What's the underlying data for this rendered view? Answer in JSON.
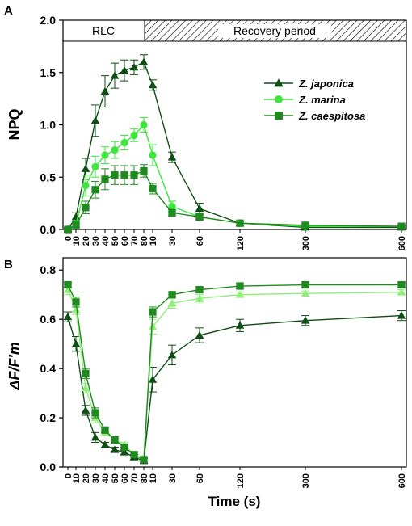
{
  "chart_data": [
    {
      "panel": "A",
      "type": "line",
      "ylabel": "NPQ",
      "ylim": [
        0,
        2.0
      ],
      "yticks": [
        "0.0",
        "0.5",
        "1.0",
        "1.5",
        "2.0"
      ],
      "x": [
        "0",
        "10",
        "20",
        "30",
        "40",
        "50",
        "60",
        "70",
        "80",
        "10",
        "30",
        "60",
        "120",
        "300",
        "600"
      ],
      "phases": {
        "rlc_label": "RLC",
        "recovery_label": "Recovery period"
      },
      "legend": "right-middle",
      "series": [
        {
          "name": "Z. japonica",
          "marker": "triangle",
          "color": "#0e4d14",
          "values": [
            0.0,
            0.12,
            0.58,
            1.04,
            1.32,
            1.47,
            1.52,
            1.55,
            1.6,
            1.38,
            0.69,
            0.2,
            0.06,
            0.02,
            0.02
          ],
          "errors": [
            0.02,
            0.04,
            0.1,
            0.15,
            0.15,
            0.12,
            0.1,
            0.07,
            0.07,
            0.05,
            0.05,
            0.05,
            0.02,
            0.01,
            0.01
          ]
        },
        {
          "name": "Z. marina",
          "marker": "circle",
          "color": "#3ce63c",
          "values": [
            0.0,
            0.05,
            0.42,
            0.6,
            0.71,
            0.76,
            0.83,
            0.9,
            1.0,
            0.71,
            0.22,
            0.12,
            0.06,
            0.03,
            0.03
          ],
          "errors": [
            0.01,
            0.03,
            0.1,
            0.1,
            0.08,
            0.08,
            0.07,
            0.06,
            0.07,
            0.1,
            0.05,
            0.03,
            0.02,
            0.01,
            0.01
          ]
        },
        {
          "name": "Z. caespitosa",
          "marker": "square",
          "color": "#1f8a1f",
          "values": [
            0.0,
            0.04,
            0.21,
            0.38,
            0.48,
            0.52,
            0.52,
            0.52,
            0.56,
            0.39,
            0.16,
            0.12,
            0.06,
            0.04,
            0.03
          ],
          "errors": [
            0.01,
            0.02,
            0.06,
            0.08,
            0.1,
            0.09,
            0.09,
            0.09,
            0.06,
            0.05,
            0.03,
            0.02,
            0.02,
            0.01,
            0.01
          ]
        }
      ]
    },
    {
      "panel": "B",
      "type": "line",
      "ylabel": "ΔF/F′m",
      "xlabel": "Time (s)",
      "ylim": [
        0,
        0.85
      ],
      "yticks": [
        "0.0",
        "0.2",
        "0.4",
        "0.6",
        "0.8"
      ],
      "x": [
        "0",
        "10",
        "20",
        "30",
        "40",
        "50",
        "60",
        "70",
        "80",
        "10",
        "30",
        "60",
        "120",
        "300",
        "600"
      ],
      "series": [
        {
          "name": "Z. japonica",
          "marker": "triangle",
          "color": "#0e4d14",
          "values": [
            0.61,
            0.5,
            0.23,
            0.12,
            0.09,
            0.07,
            0.06,
            0.04,
            0.025,
            0.355,
            0.455,
            0.535,
            0.575,
            0.595,
            0.615
          ],
          "errors": [
            0.02,
            0.03,
            0.02,
            0.02,
            0.01,
            0.01,
            0.01,
            0.01,
            0.01,
            0.05,
            0.04,
            0.03,
            0.025,
            0.02,
            0.02
          ]
        },
        {
          "name": "Z. marina",
          "marker": "triangle",
          "color": "#90ee7a",
          "values": [
            0.72,
            0.64,
            0.32,
            0.2,
            0.14,
            0.11,
            0.09,
            0.05,
            0.03,
            0.57,
            0.665,
            0.685,
            0.7,
            0.705,
            0.71
          ],
          "errors": [
            0.02,
            0.02,
            0.02,
            0.02,
            0.01,
            0.01,
            0.01,
            0.01,
            0.01,
            0.03,
            0.02,
            0.015,
            0.01,
            0.01,
            0.01
          ]
        },
        {
          "name": "Z. caespitosa",
          "marker": "square",
          "color": "#1f8a1f",
          "values": [
            0.74,
            0.67,
            0.38,
            0.22,
            0.15,
            0.11,
            0.08,
            0.05,
            0.03,
            0.63,
            0.7,
            0.72,
            0.735,
            0.74,
            0.74
          ],
          "errors": [
            0.01,
            0.02,
            0.02,
            0.02,
            0.01,
            0.01,
            0.01,
            0.01,
            0.01,
            0.02,
            0.01,
            0.01,
            0.01,
            0.01,
            0.01
          ]
        }
      ]
    }
  ]
}
